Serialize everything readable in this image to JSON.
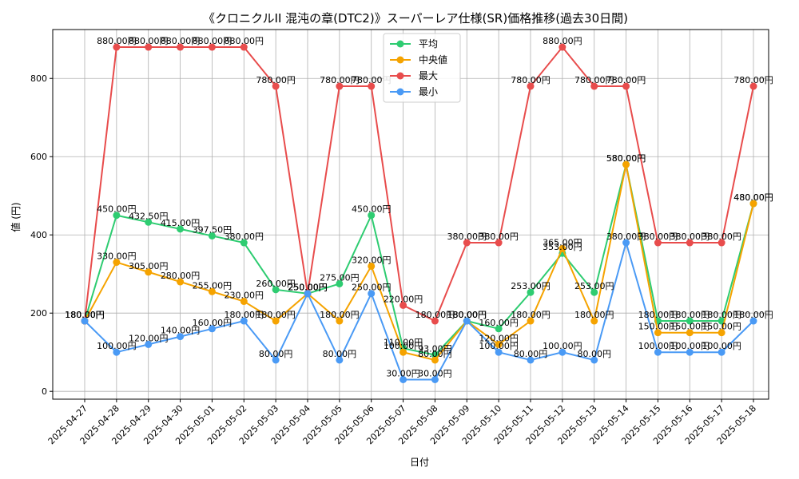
{
  "chart_data": {
    "type": "line",
    "title": "《クロニクルII 混沌の章(DTC2)》スーパーレア仕様(SR)価格推移(過去30日間)",
    "xlabel": "日付",
    "ylabel": "値 (円)",
    "categories": [
      "2025-04-27",
      "2025-04-28",
      "2025-04-29",
      "2025-04-30",
      "2025-05-01",
      "2025-05-02",
      "2025-05-03",
      "2025-05-04",
      "2025-05-05",
      "2025-05-06",
      "2025-05-07",
      "2025-05-08",
      "2025-05-09",
      "2025-05-10",
      "2025-05-11",
      "2025-05-12",
      "2025-05-13",
      "2025-05-14",
      "2025-05-15",
      "2025-05-16",
      "2025-05-17",
      "2025-05-18"
    ],
    "ylim": [
      -20,
      925
    ],
    "yticks": [
      0,
      200,
      400,
      600,
      800
    ],
    "grid": true,
    "legend_position": "upper-center",
    "value_suffix": "円",
    "series": [
      {
        "name": "平均",
        "color": "#2ecc71",
        "values": [
          180,
          450,
          432.5,
          415,
          397.5,
          380,
          260,
          250,
          275,
          450,
          110,
          93,
          180,
          160,
          253,
          353,
          253,
          580,
          180,
          180,
          180,
          480
        ]
      },
      {
        "name": "中央値",
        "color": "#f5a300",
        "values": [
          180,
          330,
          305,
          280,
          255,
          230,
          180,
          250,
          180,
          320,
          100,
          80,
          180,
          120,
          180,
          365,
          180,
          580,
          150,
          150,
          150,
          480
        ]
      },
      {
        "name": "最大",
        "color": "#e84c4c",
        "values": [
          180,
          880,
          880,
          880,
          880,
          880,
          780,
          250,
          780,
          780,
          220,
          180,
          380,
          380,
          780,
          880,
          780,
          780,
          380,
          380,
          380,
          780
        ]
      },
      {
        "name": "最小",
        "color": "#4a9af5",
        "values": [
          180,
          100,
          120,
          140,
          160,
          180,
          80,
          250,
          80,
          250,
          30,
          30,
          180,
          100,
          80,
          100,
          80,
          380,
          100,
          100,
          100,
          180
        ]
      }
    ]
  }
}
